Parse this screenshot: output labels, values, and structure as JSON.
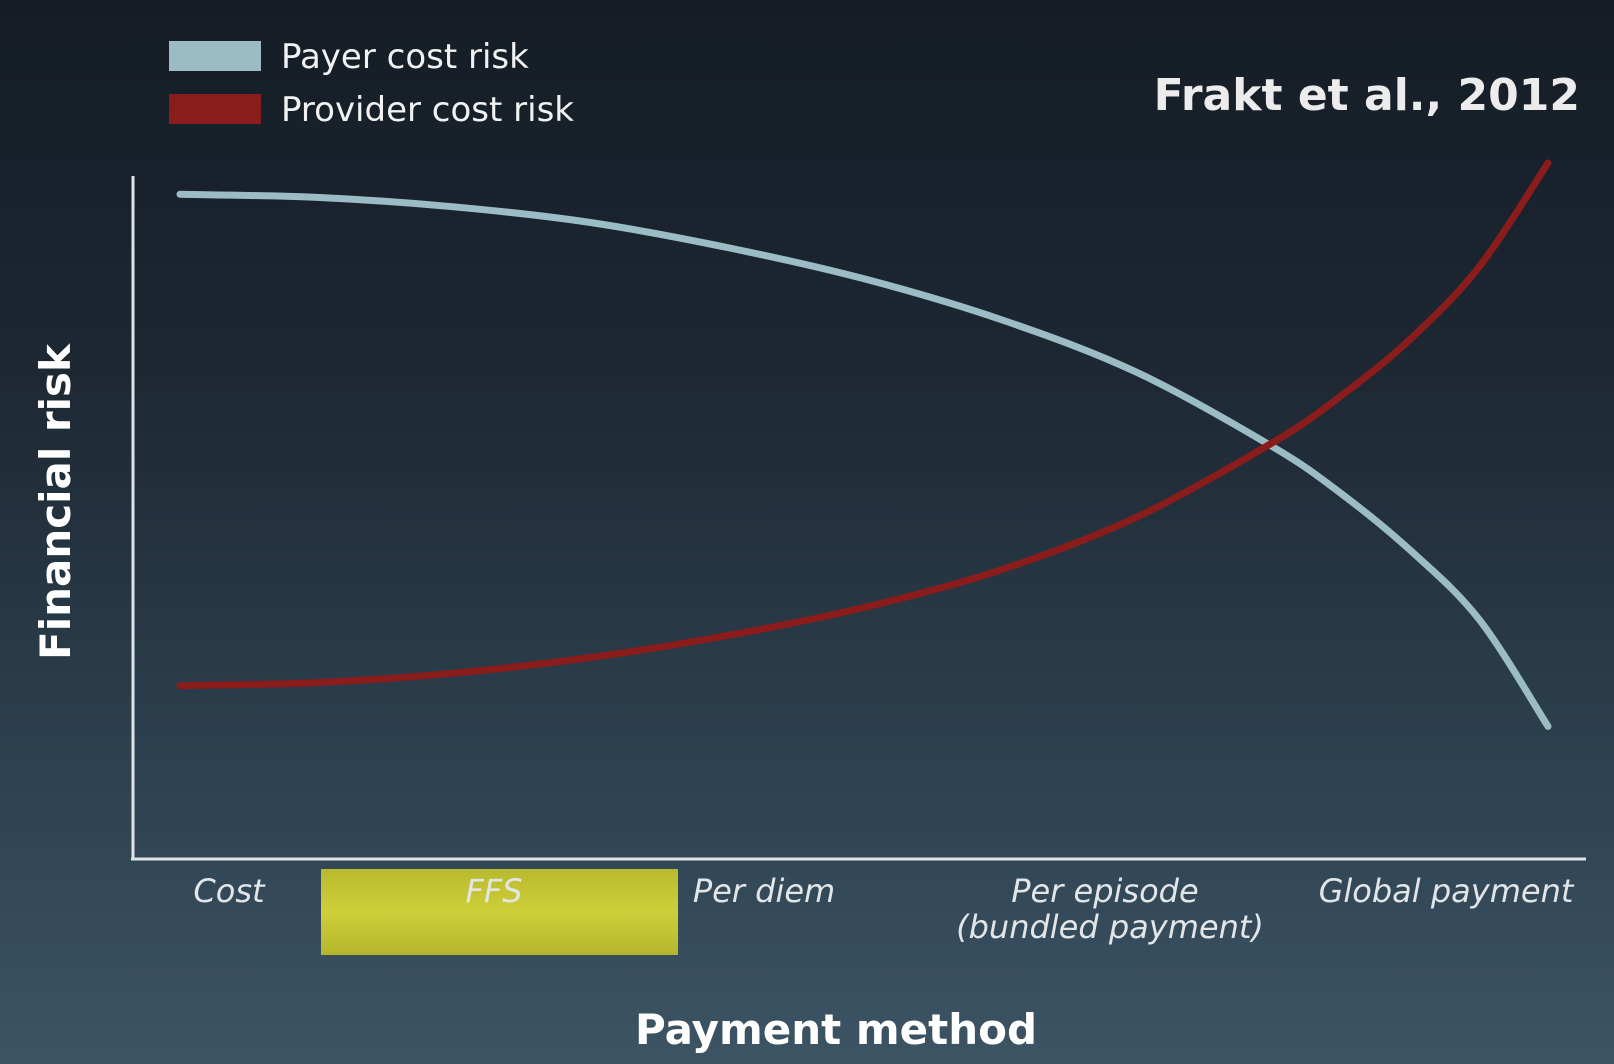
{
  "chart_data": {
    "type": "line",
    "title": "",
    "citation": "Frakt et al., 2012",
    "xlabel": "Payment method",
    "ylabel": "Financial risk",
    "categories": [
      "Cost",
      "FFS",
      "Per diem",
      "Per episode (bundled payment)",
      "Global payment"
    ],
    "category_lines": [
      [
        "Cost"
      ],
      [
        "FFS"
      ],
      [
        "Per diem"
      ],
      [
        "Per episode",
        "(bundled payment)"
      ],
      [
        "Global payment"
      ]
    ],
    "highlighted_category": "FFS",
    "highlight_color": "#c8c832",
    "x_range": [
      0,
      1
    ],
    "y_range": [
      0,
      1
    ],
    "legend_position": "top-left",
    "grid": false,
    "series": [
      {
        "name": "Payer cost risk",
        "color": "#9bbcc4",
        "x": [
          0,
          0.1,
          0.2,
          0.3,
          0.4,
          0.5,
          0.6,
          0.7,
          0.8,
          0.85,
          0.9,
          0.95,
          1.0
        ],
        "y": [
          0.95,
          0.945,
          0.93,
          0.905,
          0.865,
          0.815,
          0.75,
          0.665,
          0.545,
          0.47,
          0.38,
          0.27,
          0.1
        ]
      },
      {
        "name": "Provider cost risk",
        "color": "#8a1c1c",
        "x": [
          0,
          0.1,
          0.2,
          0.3,
          0.4,
          0.5,
          0.6,
          0.7,
          0.8,
          0.85,
          0.9,
          0.95,
          1.0
        ],
        "y": [
          0.165,
          0.17,
          0.185,
          0.21,
          0.245,
          0.29,
          0.35,
          0.435,
          0.555,
          0.63,
          0.72,
          0.835,
          1.0
        ]
      }
    ]
  }
}
